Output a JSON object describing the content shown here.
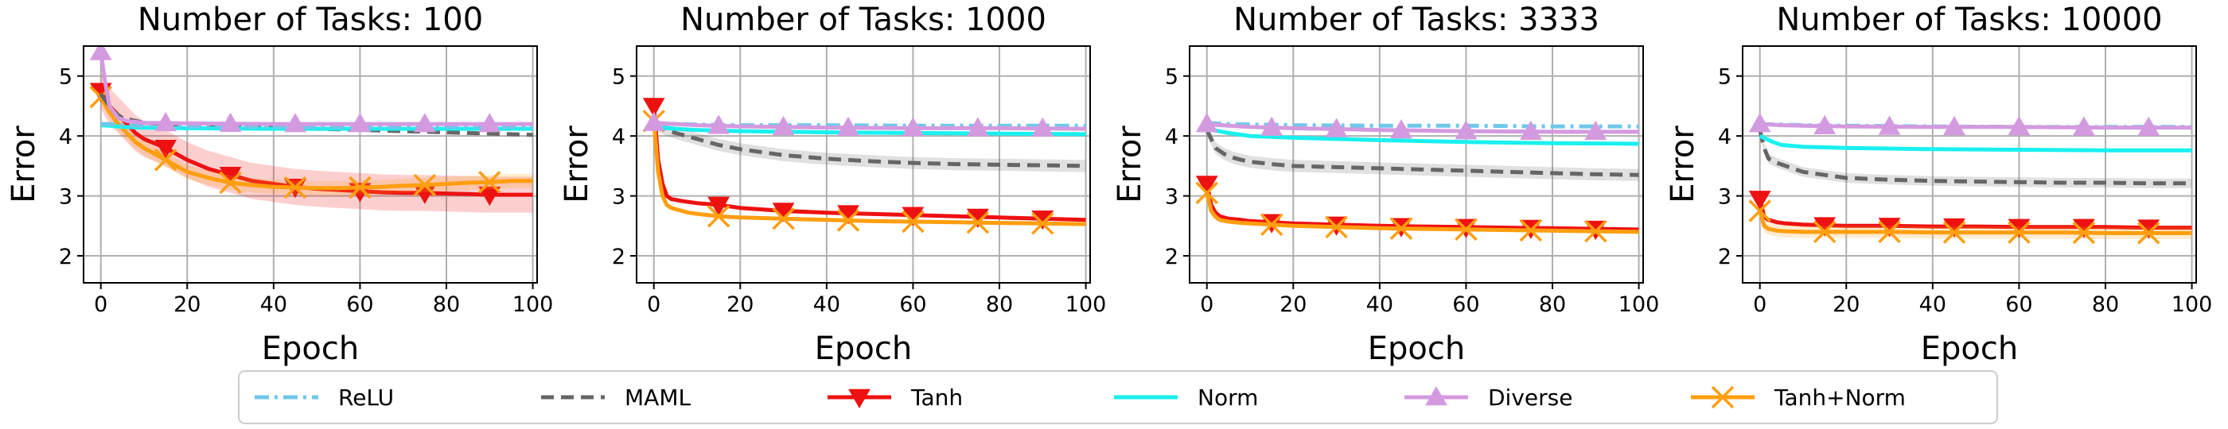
{
  "chart_data": {
    "type": "line",
    "xlabel": "Epoch",
    "ylabel": "Error",
    "xlim": [
      -4,
      101
    ],
    "ylim": [
      1.55,
      5.5
    ],
    "xticks": [
      "0",
      "20",
      "40",
      "60",
      "80",
      "100"
    ],
    "yticks": [
      "2",
      "3",
      "4",
      "5"
    ],
    "grid": true,
    "legend": {
      "placement": "bottom-center",
      "entries": [
        "ReLU",
        "MAML",
        "Tanh",
        "Norm",
        "Diverse",
        "Tanh+Norm"
      ]
    },
    "series_style": [
      {
        "name": "ReLU",
        "color": "#6fc8ea",
        "dash": "dash-dot",
        "marker": "none"
      },
      {
        "name": "MAML",
        "color": "#666666",
        "dash": "dashed",
        "marker": "none"
      },
      {
        "name": "Tanh",
        "color": "#ee1111",
        "dash": "solid",
        "marker": "triangle-down"
      },
      {
        "name": "Norm",
        "color": "#19f0f0",
        "dash": "solid",
        "marker": "none"
      },
      {
        "name": "Diverse",
        "color": "#d49ae0",
        "dash": "solid",
        "marker": "triangle-up"
      },
      {
        "name": "Tanh+Norm",
        "color": "#ff9e10",
        "dash": "solid",
        "marker": "x"
      }
    ],
    "panels": [
      {
        "title": "Number of Tasks: 100",
        "series": [
          {
            "name": "ReLU",
            "x": [
              0,
              2,
              5,
              10,
              20,
              40,
              60,
              80,
              100
            ],
            "y": [
              4.2,
              4.2,
              4.18,
              4.17,
              4.16,
              4.15,
              4.15,
              4.15,
              4.15
            ]
          },
          {
            "name": "MAML",
            "x": [
              0,
              3,
              5,
              10,
              20,
              30,
              40,
              50,
              60,
              70,
              80,
              90,
              100
            ],
            "y": [
              4.7,
              4.4,
              4.3,
              4.22,
              4.18,
              4.16,
              4.14,
              4.12,
              4.1,
              4.08,
              4.06,
              4.04,
              4.02
            ]
          },
          {
            "name": "Tanh",
            "x": [
              0,
              2,
              4,
              6,
              8,
              10,
              15,
              20,
              25,
              30,
              35,
              40,
              45,
              50,
              55,
              60,
              65,
              70,
              75,
              80,
              85,
              90,
              95,
              100
            ],
            "y": [
              4.75,
              4.5,
              4.35,
              4.2,
              4.05,
              3.95,
              3.8,
              3.6,
              3.45,
              3.35,
              3.25,
              3.2,
              3.15,
              3.12,
              3.1,
              3.08,
              3.06,
              3.05,
              3.05,
              3.04,
              3.03,
              3.02,
              3.02,
              3.02
            ],
            "band": 0.3
          },
          {
            "name": "Norm",
            "x": [
              0,
              2,
              5,
              10,
              20,
              40,
              60,
              80,
              100
            ],
            "y": [
              4.18,
              4.17,
              4.15,
              4.14,
              4.13,
              4.12,
              4.12,
              4.12,
              4.12
            ]
          },
          {
            "name": "Diverse",
            "x": [
              0,
              1,
              2,
              4,
              6,
              10,
              20,
              40,
              60,
              80,
              100
            ],
            "y": [
              5.4,
              4.9,
              4.5,
              4.3,
              4.25,
              4.22,
              4.21,
              4.2,
              4.2,
              4.2,
              4.2
            ]
          },
          {
            "name": "Tanh+Norm",
            "x": [
              0,
              2,
              4,
              6,
              8,
              10,
              15,
              20,
              25,
              30,
              35,
              40,
              45,
              50,
              55,
              60,
              65,
              70,
              75,
              80,
              85,
              90,
              95,
              100
            ],
            "y": [
              4.65,
              4.4,
              4.2,
              4.05,
              3.9,
              3.8,
              3.6,
              3.4,
              3.3,
              3.22,
              3.18,
              3.15,
              3.14,
              3.13,
              3.13,
              3.14,
              3.15,
              3.17,
              3.18,
              3.2,
              3.22,
              3.23,
              3.25,
              3.25
            ],
            "band": 0.12
          }
        ]
      },
      {
        "title": "Number of Tasks: 1000",
        "series": [
          {
            "name": "ReLU",
            "x": [
              0,
              5,
              10,
              20,
              40,
              60,
              80,
              100
            ],
            "y": [
              4.2,
              4.2,
              4.19,
              4.18,
              4.18,
              4.17,
              4.17,
              4.17
            ]
          },
          {
            "name": "MAML",
            "x": [
              0,
              3,
              5,
              10,
              15,
              20,
              30,
              40,
              50,
              60,
              70,
              80,
              90,
              100
            ],
            "y": [
              4.2,
              4.1,
              4.05,
              3.95,
              3.85,
              3.78,
              3.68,
              3.62,
              3.58,
              3.55,
              3.53,
              3.52,
              3.51,
              3.5
            ],
            "band": 0.1
          },
          {
            "name": "Tanh",
            "x": [
              0,
              1,
              2,
              3,
              4,
              6,
              8,
              10,
              15,
              20,
              30,
              40,
              50,
              60,
              70,
              80,
              90,
              100
            ],
            "y": [
              4.5,
              3.6,
              3.2,
              3.0,
              2.95,
              2.92,
              2.9,
              2.88,
              2.85,
              2.8,
              2.75,
              2.72,
              2.7,
              2.68,
              2.66,
              2.64,
              2.62,
              2.6
            ]
          },
          {
            "name": "Norm",
            "x": [
              0,
              5,
              10,
              20,
              40,
              60,
              80,
              100
            ],
            "y": [
              4.15,
              4.12,
              4.1,
              4.08,
              4.06,
              4.05,
              4.04,
              4.03
            ]
          },
          {
            "name": "Diverse",
            "x": [
              0,
              5,
              10,
              20,
              40,
              60,
              80,
              100
            ],
            "y": [
              4.22,
              4.2,
              4.18,
              4.16,
              4.14,
              4.13,
              4.13,
              4.12
            ]
          },
          {
            "name": "Tanh+Norm",
            "x": [
              0,
              1,
              2,
              3,
              4,
              6,
              8,
              10,
              15,
              20,
              30,
              40,
              50,
              60,
              70,
              80,
              90,
              100
            ],
            "y": [
              4.25,
              3.4,
              3.0,
              2.85,
              2.8,
              2.76,
              2.72,
              2.7,
              2.66,
              2.64,
              2.62,
              2.6,
              2.58,
              2.57,
              2.56,
              2.55,
              2.54,
              2.53
            ]
          }
        ]
      },
      {
        "title": "Number of Tasks: 3333",
        "series": [
          {
            "name": "ReLU",
            "x": [
              0,
              5,
              10,
              20,
              40,
              60,
              80,
              100
            ],
            "y": [
              4.22,
              4.2,
              4.19,
              4.18,
              4.17,
              4.17,
              4.16,
              4.16
            ]
          },
          {
            "name": "MAML",
            "x": [
              0,
              2,
              4,
              6,
              8,
              10,
              15,
              20,
              30,
              40,
              50,
              60,
              70,
              80,
              90,
              100
            ],
            "y": [
              4.1,
              3.8,
              3.7,
              3.64,
              3.6,
              3.57,
              3.53,
              3.5,
              3.48,
              3.46,
              3.44,
              3.42,
              3.4,
              3.38,
              3.36,
              3.35
            ],
            "band": 0.1
          },
          {
            "name": "Tanh",
            "x": [
              0,
              1,
              2,
              3,
              5,
              8,
              10,
              15,
              20,
              30,
              40,
              50,
              60,
              70,
              80,
              90,
              100
            ],
            "y": [
              3.2,
              2.85,
              2.72,
              2.66,
              2.62,
              2.6,
              2.58,
              2.56,
              2.54,
              2.52,
              2.5,
              2.49,
              2.48,
              2.47,
              2.46,
              2.45,
              2.44
            ]
          },
          {
            "name": "Norm",
            "x": [
              0,
              5,
              10,
              20,
              30,
              40,
              60,
              80,
              100
            ],
            "y": [
              4.12,
              4.05,
              4.0,
              3.97,
              3.95,
              3.93,
              3.9,
              3.88,
              3.87
            ]
          },
          {
            "name": "Diverse",
            "x": [
              0,
              5,
              10,
              20,
              40,
              60,
              80,
              100
            ],
            "y": [
              4.2,
              4.17,
              4.15,
              4.13,
              4.1,
              4.08,
              4.07,
              4.07
            ]
          },
          {
            "name": "Tanh+Norm",
            "x": [
              0,
              1,
              2,
              3,
              5,
              8,
              10,
              15,
              20,
              30,
              40,
              50,
              60,
              70,
              80,
              90,
              100
            ],
            "y": [
              3.05,
              2.75,
              2.65,
              2.6,
              2.57,
              2.55,
              2.54,
              2.52,
              2.5,
              2.48,
              2.46,
              2.45,
              2.44,
              2.43,
              2.42,
              2.41,
              2.4
            ]
          }
        ]
      },
      {
        "title": "Number of Tasks: 10000",
        "series": [
          {
            "name": "ReLU",
            "x": [
              0,
              5,
              10,
              20,
              40,
              60,
              80,
              100
            ],
            "y": [
              4.2,
              4.19,
              4.18,
              4.17,
              4.16,
              4.15,
              4.15,
              4.15
            ]
          },
          {
            "name": "MAML",
            "x": [
              0,
              1,
              2,
              4,
              6,
              8,
              10,
              15,
              20,
              30,
              40,
              50,
              60,
              70,
              80,
              90,
              100
            ],
            "y": [
              4.1,
              3.8,
              3.62,
              3.55,
              3.5,
              3.45,
              3.4,
              3.35,
              3.3,
              3.27,
              3.25,
              3.24,
              3.23,
              3.22,
              3.22,
              3.21,
              3.21
            ],
            "band": 0.08
          },
          {
            "name": "Tanh",
            "x": [
              0,
              1,
              2,
              4,
              6,
              10,
              15,
              20,
              30,
              40,
              50,
              60,
              70,
              80,
              90,
              100
            ],
            "y": [
              2.95,
              2.65,
              2.6,
              2.56,
              2.54,
              2.52,
              2.51,
              2.5,
              2.5,
              2.49,
              2.49,
              2.48,
              2.48,
              2.48,
              2.47,
              2.47
            ]
          },
          {
            "name": "Norm",
            "x": [
              0,
              3,
              5,
              10,
              20,
              30,
              40,
              60,
              80,
              100
            ],
            "y": [
              4.0,
              3.9,
              3.85,
              3.82,
              3.8,
              3.79,
              3.78,
              3.77,
              3.76,
              3.76
            ]
          },
          {
            "name": "Diverse",
            "x": [
              0,
              5,
              10,
              20,
              40,
              60,
              80,
              100
            ],
            "y": [
              4.2,
              4.18,
              4.17,
              4.16,
              4.15,
              4.15,
              4.14,
              4.14
            ]
          },
          {
            "name": "Tanh+Norm",
            "x": [
              0,
              1,
              2,
              4,
              6,
              10,
              15,
              20,
              30,
              40,
              50,
              60,
              70,
              80,
              90,
              100
            ],
            "y": [
              2.75,
              2.5,
              2.45,
              2.42,
              2.41,
              2.4,
              2.4,
              2.4,
              2.4,
              2.39,
              2.39,
              2.39,
              2.39,
              2.38,
              2.38,
              2.38
            ],
            "band": 0.1
          }
        ]
      }
    ]
  }
}
